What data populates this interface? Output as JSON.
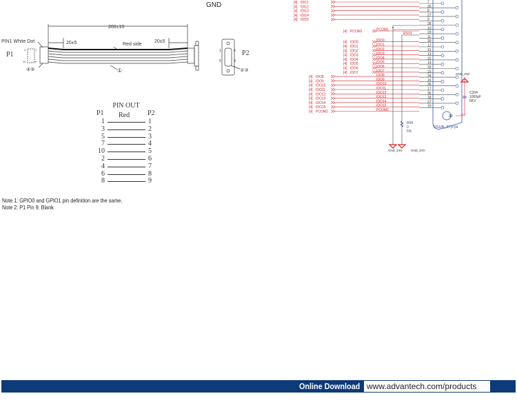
{
  "top_label": "GND",
  "cable": {
    "length_dim": "200±10",
    "left_tail_dim": "20±5",
    "right_tail_dim": "20±5",
    "red_side": "Red side",
    "pin1_marker": "PIN1 White Dot",
    "p1_label": "P1",
    "p2_label": "P2",
    "p1_pin_numbers": [
      "2",
      "1",
      "10",
      "9"
    ],
    "p2_pin_numbers": [
      "1",
      "6",
      "5",
      "9"
    ],
    "callouts": [
      "①",
      "②③",
      "④⑤"
    ]
  },
  "pinout": {
    "title": "PIN OUT",
    "col_p1": "P1",
    "col_p2": "P2",
    "wire_color": "Red",
    "rows": [
      {
        "p1": "1",
        "p2": "1"
      },
      {
        "p1": "3",
        "p2": "2"
      },
      {
        "p1": "5",
        "p2": "3"
      },
      {
        "p1": "7",
        "p2": "4"
      },
      {
        "p1": "10",
        "p2": "5"
      },
      {
        "p1": "2",
        "p2": "6"
      },
      {
        "p1": "4",
        "p2": "7"
      },
      {
        "p1": "6",
        "p2": "8"
      },
      {
        "p1": "8",
        "p2": "9"
      }
    ]
  },
  "notes": [
    "Note 1: GPIO0 and GPIO1 pin definition are the same.",
    "Note 2: P1 Pin 9: Blank"
  ],
  "schematic": {
    "net_color": "#d2232a",
    "part_color": "#2b4ea0",
    "pins": [
      "7",
      "26",
      "8",
      "27",
      "9",
      "28",
      "10",
      "29",
      "11",
      "30",
      "12",
      "31",
      "13",
      "32",
      "14",
      "33",
      "15",
      "34",
      "16",
      "35",
      "17",
      "36",
      "18",
      "37",
      "19"
    ],
    "inputs": [
      "IDI11",
      "IDI12",
      "IDI13",
      "IDI14",
      "IDI15"
    ],
    "pcom1": "PCOM1",
    "rsv": "RSV1",
    "outputs_a": [
      "IDO0",
      "IDO1",
      "IDO2",
      "IDO3",
      "IDO4",
      "IDO5",
      "IDO6",
      "IDO7"
    ],
    "outputs_b": [
      "IDO8",
      "IDO9",
      "IDO10",
      "IDO11",
      "IDO12",
      "IDO13",
      "IDO14",
      "IDO15",
      "PCOM2"
    ],
    "sheet_ref": "[4]",
    "connector": "DSUB_37(F)H",
    "shield_pin": "39",
    "resistor": {
      "ref": "R94",
      "value": "0",
      "tol": "5%"
    },
    "capacitor": {
      "ref": "C204",
      "value": "1000pF",
      "rating": "5KV"
    },
    "ground": "GND_DIO"
  },
  "footer": {
    "label": "Online Download",
    "url": "www.advantech.com/products",
    "color": "#0d3a78"
  }
}
